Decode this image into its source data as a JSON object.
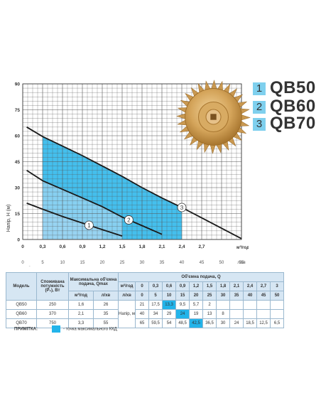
{
  "chart_data": {
    "type": "line",
    "xlabel": "Об'ємна подача, Q",
    "ylabel": "Напір, Н (м)",
    "x_unit_primary": "м³/год",
    "x_unit_secondary": "л/хв",
    "xlim": [
      0,
      3.3
    ],
    "ylim": [
      0,
      90
    ],
    "x_ticks_primary": [
      "0",
      "0,3",
      "0,6",
      "0,9",
      "1,2",
      "1,5",
      "1,8",
      "2,1",
      "2,4",
      "2,7"
    ],
    "x_ticks_secondary": [
      "0",
      "5",
      "10",
      "15",
      "20",
      "25",
      "30",
      "35",
      "40",
      "45",
      "50",
      "55"
    ],
    "y_ticks": [
      "0",
      "15",
      "30",
      "45",
      "60",
      "75",
      "90"
    ],
    "grid": true,
    "series": [
      {
        "name": "1",
        "x": [
          0.06,
          0.3,
          0.6,
          0.9,
          1.2,
          1.5
        ],
        "y": [
          21,
          17.5,
          13.3,
          9.5,
          5.7,
          2
        ],
        "band": [
          0.3,
          1.2
        ]
      },
      {
        "name": "2",
        "x": [
          0.06,
          0.3,
          0.6,
          0.9,
          1.2,
          1.5,
          1.8,
          2.1
        ],
        "y": [
          40,
          34,
          29,
          24,
          19,
          13,
          8,
          3
        ],
        "band": [
          0.3,
          1.5
        ]
      },
      {
        "name": "3",
        "x": [
          0.06,
          0.3,
          0.6,
          0.9,
          1.2,
          1.5,
          1.8,
          2.1,
          2.4,
          2.7,
          3.0,
          3.3
        ],
        "y": [
          65,
          59.5,
          54,
          48.5,
          42.5,
          36.5,
          30,
          24,
          18.5,
          12.5,
          6.5,
          0.5
        ],
        "band": [
          0.3,
          2.4
        ]
      }
    ]
  },
  "legend": [
    {
      "num": "1",
      "name": "QB50"
    },
    {
      "num": "2",
      "name": "QB60"
    },
    {
      "num": "3",
      "name": "QB70"
    }
  ],
  "colors": {
    "band_light": "#9dd6f2",
    "band_dark": "#23b4ea",
    "curve": "#1a1a1a",
    "grid": "#555555",
    "table_head": "#d6e6f3",
    "highlight": "#23b4ea"
  },
  "table": {
    "h_model": "Модель",
    "h_power": "Споживана потужність (P₁), Вт",
    "h_max": "Максимальна об'ємна подача, Qmax",
    "h_m3": "м³/год",
    "h_lpm": "л/хв",
    "h_flow": "Об'ємна подача, Q",
    "h_head": "Напір, м",
    "unit_m3": "м³/год",
    "unit_lpm": "л/хв",
    "q_m3": [
      "0",
      "0,3",
      "0,6",
      "0,9",
      "1,2",
      "1,5",
      "1,8",
      "2,1",
      "2,4",
      "2,7",
      "3"
    ],
    "q_lpm": [
      "0",
      "5",
      "10",
      "15",
      "20",
      "25",
      "30",
      "35",
      "40",
      "45",
      "50"
    ],
    "rows": [
      {
        "model": "QB50",
        "power": "250",
        "qm3": "1,6",
        "qlpm": "26",
        "h": [
          "21",
          "17,5",
          "13,3",
          "9,5",
          "5,7",
          "2",
          "",
          "",
          "",
          "",
          ""
        ],
        "hl": 2
      },
      {
        "model": "QB60",
        "power": "370",
        "qm3": "2,1",
        "qlpm": "35",
        "h": [
          "40",
          "34",
          "29",
          "24",
          "19",
          "13",
          "8",
          "",
          "",
          "",
          ""
        ],
        "hl": 3
      },
      {
        "model": "QB70",
        "power": "750",
        "qm3": "3,3",
        "qlpm": "55",
        "h": [
          "65",
          "59,5",
          "54",
          "48,5",
          "42,5",
          "36,5",
          "30",
          "24",
          "18,5",
          "12,5",
          "6,5"
        ],
        "hl": 4
      }
    ]
  },
  "note": {
    "label": "ПРИМІТКА:",
    "text": "- точка максимального ККД"
  }
}
